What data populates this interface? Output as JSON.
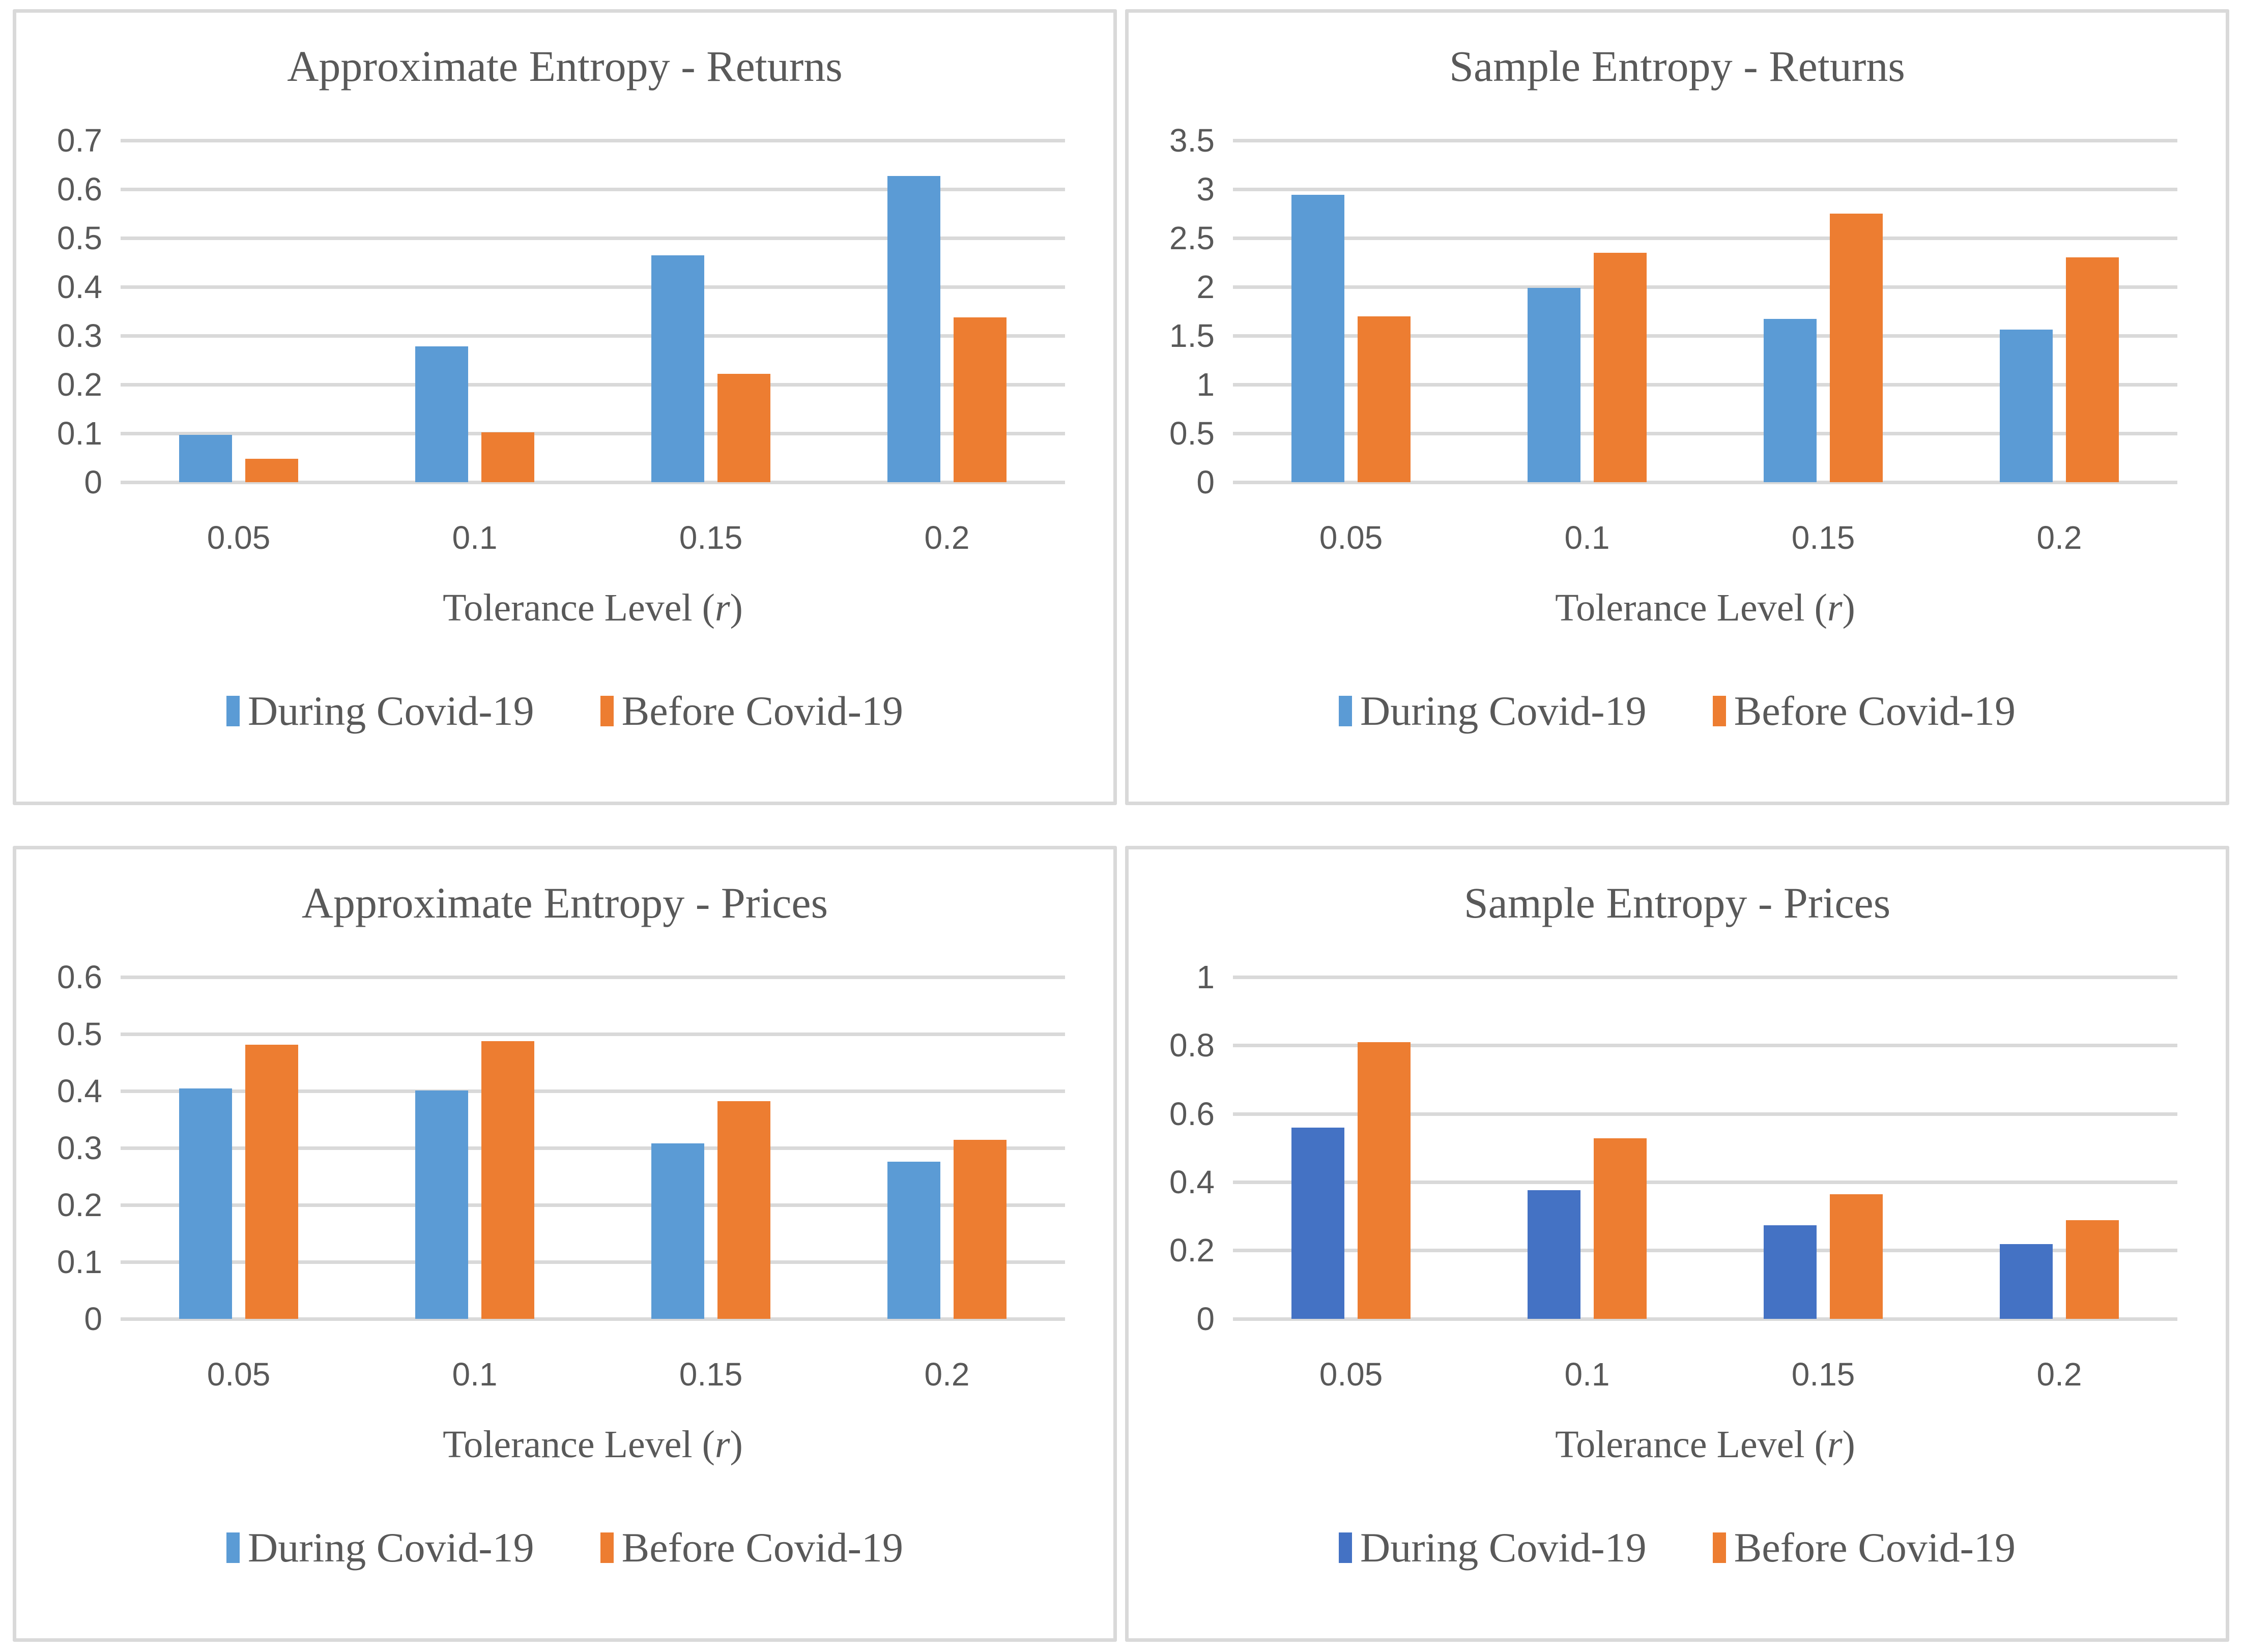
{
  "page": {
    "background_color": "#ffffff",
    "panel_border_color": "#d9d9d9",
    "gridline_color": "#d9d9d9",
    "text_color": "#595959"
  },
  "x_axis": {
    "prefix": "Tolerance Level (",
    "italic": "r",
    "suffix": ")"
  },
  "chart_data": [
    {
      "type": "bar",
      "title": "Approximate Entropy - Returns",
      "xlabel": "Tolerance Level (r)",
      "categories": [
        "0.05",
        "0.1",
        "0.15",
        "0.2"
      ],
      "ylim": [
        0,
        0.7
      ],
      "yticks": [
        "0.7",
        "0.6",
        "0.5",
        "0.4",
        "0.3",
        "0.2",
        "0.1",
        "0"
      ],
      "grid": true,
      "legend_position": "bottom",
      "series": [
        {
          "name": "During Covid-19",
          "color": "#5B9BD5",
          "values": [
            0.097,
            0.278,
            0.465,
            0.627
          ]
        },
        {
          "name": "Before Covid-19",
          "color": "#ED7D31",
          "values": [
            0.048,
            0.102,
            0.222,
            0.337
          ]
        }
      ]
    },
    {
      "type": "bar",
      "title": "Sample Entropy - Returns",
      "xlabel": "Tolerance Level (r)",
      "categories": [
        "0.05",
        "0.1",
        "0.15",
        "0.2"
      ],
      "ylim": [
        0,
        3.5
      ],
      "yticks": [
        "3.5",
        "3",
        "2.5",
        "2",
        "1.5",
        "1",
        "0.5",
        "0"
      ],
      "grid": true,
      "legend_position": "bottom",
      "series": [
        {
          "name": "During Covid-19",
          "color": "#5B9BD5",
          "values": [
            2.94,
            1.99,
            1.67,
            1.56
          ]
        },
        {
          "name": "Before Covid-19",
          "color": "#ED7D31",
          "values": [
            1.7,
            2.35,
            2.75,
            2.3
          ]
        }
      ]
    },
    {
      "type": "bar",
      "title": "Approximate Entropy - Prices",
      "xlabel": "Tolerance Level (r)",
      "categories": [
        "0.05",
        "0.1",
        "0.15",
        "0.2"
      ],
      "ylim": [
        0,
        0.6
      ],
      "yticks": [
        "0.6",
        "0.5",
        "0.4",
        "0.3",
        "0.2",
        "0.1",
        "0"
      ],
      "grid": true,
      "legend_position": "bottom",
      "series": [
        {
          "name": "During Covid-19",
          "color": "#5B9BD5",
          "values": [
            0.404,
            0.401,
            0.308,
            0.276
          ]
        },
        {
          "name": "Before Covid-19",
          "color": "#ED7D31",
          "values": [
            0.481,
            0.487,
            0.382,
            0.314
          ]
        }
      ]
    },
    {
      "type": "bar",
      "title": "Sample Entropy - Prices",
      "xlabel": "Tolerance Level (r)",
      "categories": [
        "0.05",
        "0.1",
        "0.15",
        "0.2"
      ],
      "ylim": [
        0,
        1
      ],
      "yticks": [
        "1",
        "0.8",
        "0.6",
        "0.4",
        "0.2",
        "0"
      ],
      "grid": true,
      "legend_position": "bottom",
      "series": [
        {
          "name": "During Covid-19",
          "color": "#4472C4",
          "values": [
            0.56,
            0.376,
            0.273,
            0.218
          ]
        },
        {
          "name": "Before Covid-19",
          "color": "#ED7D31",
          "values": [
            0.81,
            0.528,
            0.364,
            0.288
          ]
        }
      ]
    }
  ]
}
